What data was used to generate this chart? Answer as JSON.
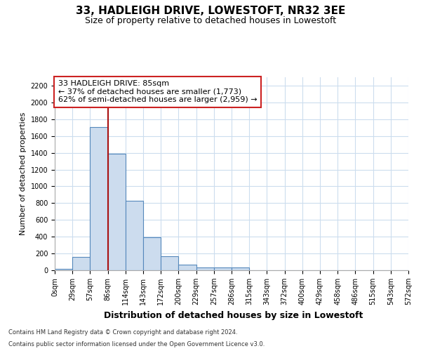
{
  "title": "33, HADLEIGH DRIVE, LOWESTOFT, NR32 3EE",
  "subtitle": "Size of property relative to detached houses in Lowestoft",
  "xlabel": "Distribution of detached houses by size in Lowestoft",
  "ylabel": "Number of detached properties",
  "bar_values": [
    15,
    160,
    1710,
    1390,
    830,
    390,
    165,
    70,
    35,
    30,
    30,
    0,
    0,
    0,
    0,
    0,
    0,
    0,
    0,
    0
  ],
  "bar_labels": [
    "0sqm",
    "29sqm",
    "57sqm",
    "86sqm",
    "114sqm",
    "143sqm",
    "172sqm",
    "200sqm",
    "229sqm",
    "257sqm",
    "286sqm",
    "315sqm",
    "343sqm",
    "372sqm",
    "400sqm",
    "429sqm",
    "458sqm",
    "486sqm",
    "515sqm",
    "543sqm",
    "572sqm"
  ],
  "bar_color": "#ccdcee",
  "bar_edge_color": "#5588bb",
  "property_line_color": "#aa1111",
  "property_label": "33 HADLEIGH DRIVE: 85sqm",
  "annotation_line1": "← 37% of detached houses are smaller (1,773)",
  "annotation_line2": "62% of semi-detached houses are larger (2,959) →",
  "annotation_box_edgecolor": "#cc2222",
  "ylim_max": 2300,
  "yticks": [
    0,
    200,
    400,
    600,
    800,
    1000,
    1200,
    1400,
    1600,
    1800,
    2000,
    2200
  ],
  "grid_color": "#ccddee",
  "plot_bg_color": "#ffffff",
  "fig_bg_color": "#ffffff",
  "footer_line1": "Contains HM Land Registry data © Crown copyright and database right 2024.",
  "footer_line2": "Contains public sector information licensed under the Open Government Licence v3.0.",
  "title_fontsize": 11,
  "subtitle_fontsize": 9,
  "xlabel_fontsize": 9,
  "ylabel_fontsize": 8,
  "tick_fontsize": 7,
  "footer_fontsize": 6,
  "annot_fontsize": 8
}
